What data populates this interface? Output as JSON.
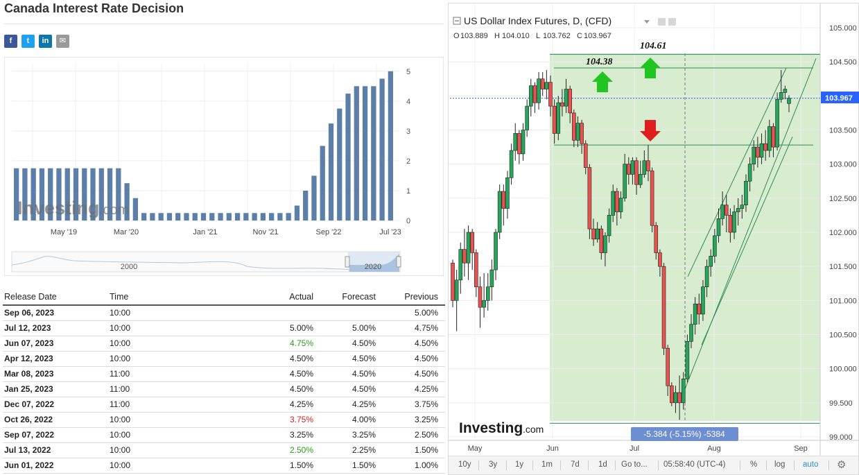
{
  "page": {
    "title": "Canada Interest Rate Decision"
  },
  "share": [
    {
      "name": "facebook",
      "label": "f",
      "color": "#3b5998"
    },
    {
      "name": "twitter",
      "label": "t",
      "color": "#1da1f2"
    },
    {
      "name": "linkedin",
      "label": "in",
      "color": "#0e76a8"
    },
    {
      "name": "email",
      "label": "✉",
      "color": "#9a9a9a"
    }
  ],
  "rate_chart": {
    "watermark": "Investing",
    "watermark_suffix": ".com",
    "y_ticks": [
      "5",
      "4",
      "3",
      "2",
      "1",
      "0"
    ],
    "x_ticks": [
      "May '19",
      "Mar '20",
      "Jan '21",
      "Nov '21",
      "Sep '22",
      "Jul '23"
    ],
    "navigator_labels": [
      "2000",
      "2020"
    ],
    "accent": "#5b7fa8"
  },
  "table": {
    "headers": {
      "date": "Release Date",
      "time": "Time",
      "actual": "Actual",
      "forecast": "Forecast",
      "previous": "Previous"
    },
    "rows": [
      {
        "date": "Sep 06, 2023",
        "time": "10:00",
        "actual": "",
        "actual_color": "black",
        "forecast": "",
        "previous": "5.00%"
      },
      {
        "date": "Jul 12, 2023",
        "time": "10:00",
        "actual": "5.00%",
        "actual_color": "black",
        "forecast": "5.00%",
        "previous": "4.75%"
      },
      {
        "date": "Jun 07, 2023",
        "time": "10:00",
        "actual": "4.75%",
        "actual_color": "green",
        "forecast": "4.50%",
        "previous": "4.50%"
      },
      {
        "date": "Apr 12, 2023",
        "time": "10:00",
        "actual": "4.50%",
        "actual_color": "black",
        "forecast": "4.50%",
        "previous": "4.50%"
      },
      {
        "date": "Mar 08, 2023",
        "time": "11:00",
        "actual": "4.50%",
        "actual_color": "black",
        "forecast": "4.50%",
        "previous": "4.50%"
      },
      {
        "date": "Jan 25, 2023",
        "time": "11:00",
        "actual": "4.50%",
        "actual_color": "black",
        "forecast": "4.50%",
        "previous": "4.25%"
      },
      {
        "date": "Dec 07, 2022",
        "time": "11:00",
        "actual": "4.25%",
        "actual_color": "black",
        "forecast": "4.25%",
        "previous": "3.75%"
      },
      {
        "date": "Oct 26, 2022",
        "time": "10:00",
        "actual": "3.75%",
        "actual_color": "red",
        "forecast": "4.00%",
        "previous": "3.25%"
      },
      {
        "date": "Sep 07, 2022",
        "time": "10:00",
        "actual": "3.25%",
        "actual_color": "black",
        "forecast": "3.25%",
        "previous": "2.50%"
      },
      {
        "date": "Jul 13, 2022",
        "time": "10:00",
        "actual": "2.50%",
        "actual_color": "green",
        "forecast": "2.25%",
        "previous": "1.50%"
      },
      {
        "date": "Jun 01, 2022",
        "time": "10:00",
        "actual": "1.50%",
        "actual_color": "black",
        "forecast": "1.50%",
        "previous": "1.00%"
      }
    ]
  },
  "dxy": {
    "title": "US Dollar Index Futures, D, (CFD)",
    "ohlc": {
      "o_label": "O",
      "o": "103.889",
      "h_label": "H",
      "h": "104.010",
      "l_label": "L",
      "l": "103.762",
      "c_label": "C",
      "c": "103.967"
    },
    "price_badge": "103.967",
    "y_ticks": [
      "105.000",
      "104.500",
      "104.000",
      "103.500",
      "103.000",
      "102.500",
      "102.000",
      "101.500",
      "101.000",
      "100.500",
      "100.000",
      "99.500",
      "99.000"
    ],
    "x_ticks": [
      "May",
      "Jun",
      "Jul",
      "Aug",
      "Sep"
    ],
    "annotations": {
      "high_1": "104.38",
      "high_2": "104.61",
      "measure": "-5.384 (-5.15%) -5384"
    },
    "watermark": "Investing",
    "watermark_suffix": ".com",
    "colors": {
      "up": "#26a65b",
      "down": "#e8534f",
      "zone": "#d8ecd0",
      "arrow_up": "#21c521",
      "arrow_down": "#e01e1e",
      "badge": "#2962ff"
    }
  },
  "toolbar": {
    "ranges": [
      "10y",
      "3y",
      "1y",
      "1m",
      "7d",
      "1d",
      "Go to..."
    ],
    "clock": "05:58:40 (UTC-4)",
    "percent": "%",
    "log": "log",
    "auto": "auto",
    "settings_icon": "gear-icon"
  },
  "chart_data": [
    {
      "type": "bar",
      "title": "Canada Interest Rate Decision",
      "xlabel": "",
      "ylabel": "",
      "ylim": [
        0,
        5
      ],
      "x_ticks": [
        "May '19",
        "Mar '20",
        "Jan '21",
        "Nov '21",
        "Sep '22",
        "Jul '23"
      ],
      "values": [
        1.75,
        1.75,
        1.75,
        1.75,
        1.75,
        1.75,
        1.75,
        1.75,
        1.75,
        1.75,
        1.75,
        1.75,
        1.75,
        1.25,
        0.75,
        0.25,
        0.25,
        0.25,
        0.25,
        0.25,
        0.25,
        0.25,
        0.25,
        0.25,
        0.25,
        0.25,
        0.25,
        0.25,
        0.25,
        0.25,
        0.25,
        0.25,
        0.25,
        0.5,
        1.0,
        1.5,
        2.5,
        3.25,
        3.75,
        4.25,
        4.5,
        4.5,
        4.5,
        4.75,
        5.0
      ],
      "grid": true
    },
    {
      "type": "candlestick",
      "title": "US Dollar Index Futures, D, (CFD)",
      "ylim": [
        98.9,
        105.2
      ],
      "x_ticks": [
        "May",
        "Jun",
        "Jul",
        "Aug",
        "Sep"
      ],
      "last_close": 103.967,
      "levels": [
        104.38,
        104.61,
        103.28
      ],
      "measure_label": "-5.384 (-5.15%) -5384",
      "candles": [
        [
          101.55,
          101.0,
          101.6,
          100.9
        ],
        [
          101.0,
          101.3,
          101.45,
          100.55
        ],
        [
          101.3,
          101.75,
          101.85,
          101.1
        ],
        [
          101.75,
          101.55,
          102.05,
          101.35
        ],
        [
          101.55,
          102.0,
          102.1,
          101.3
        ],
        [
          102.0,
          101.7,
          102.05,
          101.45
        ],
        [
          101.7,
          101.2,
          101.75,
          101.05
        ],
        [
          101.2,
          100.9,
          101.35,
          100.6
        ],
        [
          100.9,
          101.0,
          101.4,
          100.75
        ],
        [
          101.0,
          101.2,
          101.4,
          100.85
        ],
        [
          101.2,
          101.45,
          101.6,
          101.0
        ],
        [
          101.45,
          102.0,
          102.05,
          101.3
        ],
        [
          102.0,
          102.6,
          102.7,
          101.9
        ],
        [
          102.6,
          102.35,
          102.7,
          102.1
        ],
        [
          102.35,
          102.8,
          102.9,
          102.2
        ],
        [
          102.8,
          103.2,
          103.3,
          102.7
        ],
        [
          103.2,
          103.45,
          103.6,
          103.05
        ],
        [
          103.45,
          103.15,
          103.5,
          103.0
        ],
        [
          103.15,
          103.5,
          103.6,
          103.05
        ],
        [
          103.5,
          103.85,
          103.95,
          103.4
        ],
        [
          103.85,
          104.15,
          104.25,
          103.7
        ],
        [
          104.15,
          103.9,
          104.2,
          103.75
        ],
        [
          103.9,
          104.25,
          104.35,
          103.8
        ],
        [
          104.25,
          104.1,
          104.35,
          104.0
        ],
        [
          104.1,
          104.2,
          104.38,
          103.95
        ],
        [
          104.2,
          103.85,
          104.3,
          103.7
        ],
        [
          103.85,
          103.45,
          103.95,
          103.3
        ],
        [
          103.45,
          103.9,
          104.0,
          103.35
        ],
        [
          103.9,
          103.85,
          104.1,
          103.7
        ],
        [
          103.85,
          104.1,
          104.25,
          103.75
        ],
        [
          104.1,
          103.75,
          104.15,
          103.6
        ],
        [
          103.75,
          103.35,
          103.8,
          103.25
        ],
        [
          103.35,
          103.6,
          103.7,
          103.25
        ],
        [
          103.6,
          103.3,
          103.65,
          103.15
        ],
        [
          103.3,
          102.95,
          103.35,
          102.85
        ],
        [
          102.95,
          102.05,
          103.0,
          101.9
        ],
        [
          102.05,
          101.9,
          102.2,
          101.8
        ],
        [
          101.9,
          102.05,
          102.15,
          101.85
        ],
        [
          102.05,
          101.7,
          102.1,
          101.6
        ],
        [
          101.7,
          101.95,
          102.0,
          101.5
        ],
        [
          101.95,
          102.25,
          102.35,
          101.85
        ],
        [
          102.25,
          102.6,
          102.7,
          102.15
        ],
        [
          102.6,
          102.3,
          102.65,
          102.1
        ],
        [
          102.3,
          102.5,
          102.6,
          102.2
        ],
        [
          102.5,
          103.0,
          103.15,
          102.45
        ],
        [
          103.0,
          102.85,
          103.1,
          102.7
        ],
        [
          102.85,
          103.05,
          103.1,
          102.7
        ],
        [
          103.05,
          102.7,
          103.1,
          102.55
        ],
        [
          102.7,
          102.85,
          103.05,
          102.65
        ],
        [
          102.85,
          103.05,
          103.2,
          102.8
        ],
        [
          103.05,
          102.9,
          103.28,
          102.75
        ],
        [
          102.9,
          102.1,
          102.95,
          102.0
        ],
        [
          102.1,
          101.7,
          102.15,
          101.6
        ],
        [
          101.7,
          101.5,
          101.75,
          101.35
        ],
        [
          101.5,
          100.3,
          101.55,
          100.2
        ],
        [
          100.3,
          99.75,
          100.35,
          99.6
        ],
        [
          99.75,
          99.5,
          99.8,
          99.45
        ],
        [
          99.5,
          99.65,
          99.75,
          99.35
        ],
        [
          99.65,
          99.5,
          99.9,
          99.25
        ],
        [
          99.5,
          99.85,
          99.95,
          99.4
        ],
        [
          99.85,
          100.4,
          100.5,
          99.8
        ],
        [
          100.4,
          100.65,
          100.8,
          100.3
        ],
        [
          100.65,
          100.95,
          101.05,
          100.5
        ],
        [
          100.95,
          100.8,
          101.1,
          100.65
        ],
        [
          100.8,
          101.2,
          101.3,
          100.7
        ],
        [
          101.2,
          101.5,
          101.6,
          101.05
        ],
        [
          101.5,
          101.65,
          101.75,
          101.35
        ],
        [
          101.65,
          101.95,
          102.05,
          101.55
        ],
        [
          101.95,
          102.2,
          102.35,
          101.85
        ],
        [
          102.2,
          102.4,
          102.6,
          102.1
        ],
        [
          102.4,
          102.25,
          102.55,
          102.0
        ],
        [
          102.25,
          102.0,
          102.35,
          101.85
        ],
        [
          102.0,
          102.3,
          102.4,
          101.9
        ],
        [
          102.3,
          102.35,
          102.5,
          102.1
        ],
        [
          102.35,
          102.4,
          102.55,
          102.2
        ],
        [
          102.4,
          102.75,
          102.85,
          102.3
        ],
        [
          102.75,
          103.0,
          103.1,
          102.6
        ],
        [
          103.0,
          103.25,
          103.35,
          102.9
        ],
        [
          103.25,
          103.1,
          103.4,
          102.95
        ],
        [
          103.1,
          103.3,
          103.45,
          103.0
        ],
        [
          103.3,
          103.2,
          103.5,
          103.05
        ],
        [
          103.2,
          103.55,
          103.65,
          103.1
        ],
        [
          103.55,
          103.25,
          103.6,
          103.1
        ],
        [
          103.25,
          103.95,
          104.05,
          103.2
        ],
        [
          103.95,
          104.05,
          104.38,
          103.9
        ],
        [
          104.05,
          104.1,
          104.15,
          103.95
        ],
        [
          103.889,
          103.967,
          104.01,
          103.762
        ]
      ]
    }
  ]
}
